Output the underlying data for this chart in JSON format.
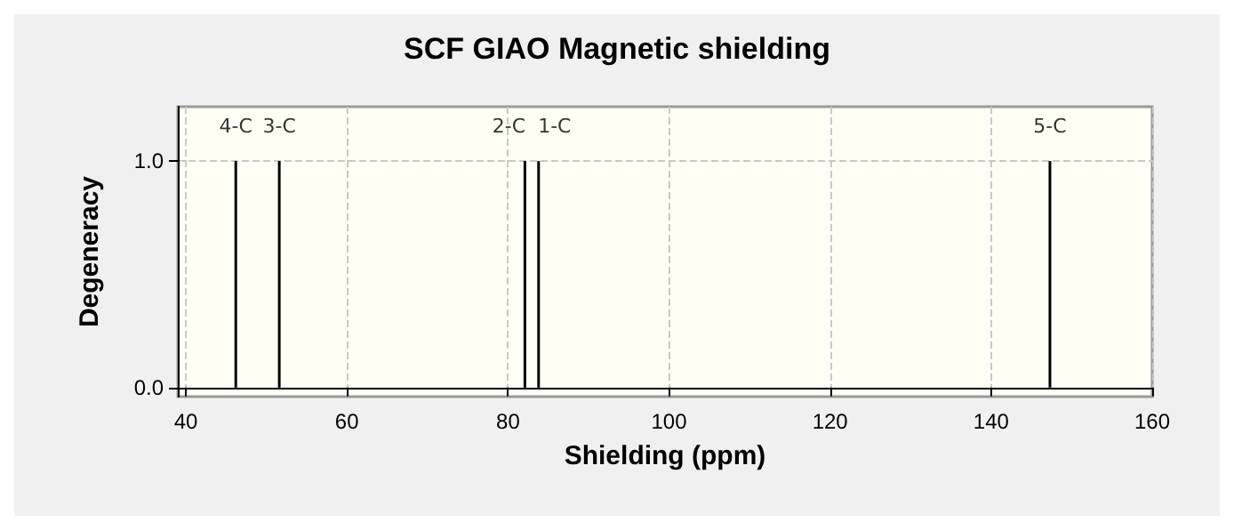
{
  "chart_data": {
    "type": "bar",
    "title": "SCF GIAO Magnetic shielding",
    "xlabel": "Shielding (ppm)",
    "ylabel": "Degeneracy",
    "x": [
      46.2,
      51.6,
      82.1,
      83.8,
      147.3
    ],
    "values": [
      1,
      1,
      1,
      1,
      1
    ],
    "color": "#000000",
    "xlim": [
      39,
      160
    ],
    "xticks": [
      40,
      60,
      80,
      100,
      120,
      140,
      160
    ],
    "ylim": [
      -0.04,
      1.24
    ],
    "yticks": [
      {
        "value": 0,
        "label": "0.0"
      },
      {
        "value": 1,
        "label": "1.0"
      }
    ],
    "grid": true,
    "annotations": [
      {
        "text": "4-C",
        "x": 46.2,
        "y": 1
      },
      {
        "text": "3-C",
        "x": 51.6,
        "y": 1
      },
      {
        "text": "2-C",
        "x": 82.1,
        "y": 1
      },
      {
        "text": "1-C",
        "x": 83.8,
        "y": 1
      },
      {
        "text": "5-C",
        "x": 147.3,
        "y": 1
      }
    ]
  }
}
